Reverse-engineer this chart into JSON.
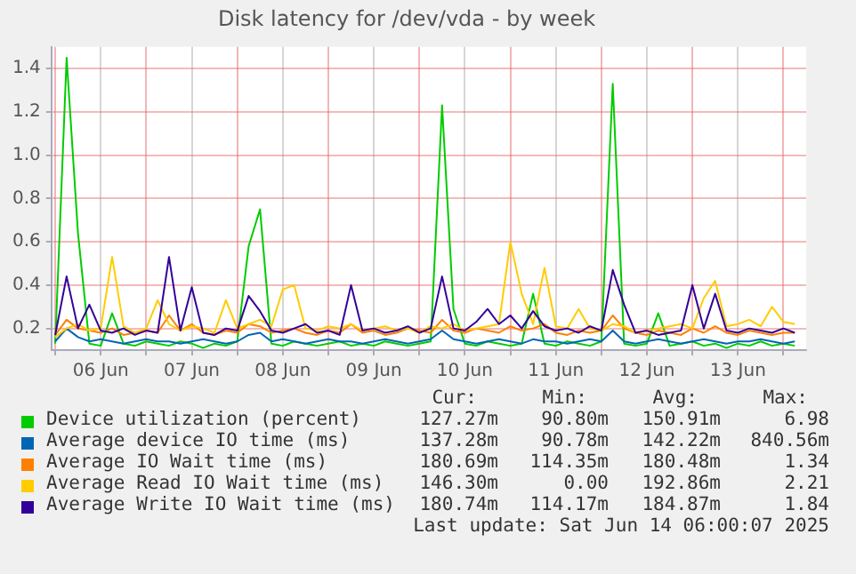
{
  "chart_data": {
    "type": "line",
    "title": "Disk latency for /dev/vda - by week",
    "x": [
      "2025-06-06T00:00",
      "2025-06-06T03:00",
      "2025-06-06T06:00",
      "2025-06-06T09:00",
      "2025-06-06T12:00",
      "2025-06-06T15:00",
      "2025-06-06T18:00",
      "2025-06-06T21:00",
      "2025-06-07T00:00",
      "2025-06-07T03:00",
      "2025-06-07T06:00",
      "2025-06-07T09:00",
      "2025-06-07T12:00",
      "2025-06-07T15:00",
      "2025-06-07T18:00",
      "2025-06-07T21:00",
      "2025-06-08T00:00",
      "2025-06-08T03:00",
      "2025-06-08T06:00",
      "2025-06-08T09:00",
      "2025-06-08T12:00",
      "2025-06-08T15:00",
      "2025-06-08T18:00",
      "2025-06-08T21:00",
      "2025-06-09T00:00",
      "2025-06-09T03:00",
      "2025-06-09T06:00",
      "2025-06-09T09:00",
      "2025-06-09T12:00",
      "2025-06-09T15:00",
      "2025-06-09T18:00",
      "2025-06-09T21:00",
      "2025-06-10T00:00",
      "2025-06-10T03:00",
      "2025-06-10T06:00",
      "2025-06-10T09:00",
      "2025-06-10T12:00",
      "2025-06-10T15:00",
      "2025-06-10T18:00",
      "2025-06-10T21:00",
      "2025-06-11T00:00",
      "2025-06-11T03:00",
      "2025-06-11T06:00",
      "2025-06-11T09:00",
      "2025-06-11T12:00",
      "2025-06-11T15:00",
      "2025-06-11T18:00",
      "2025-06-11T21:00",
      "2025-06-12T00:00",
      "2025-06-12T03:00",
      "2025-06-12T06:00",
      "2025-06-12T09:00",
      "2025-06-12T12:00",
      "2025-06-12T15:00",
      "2025-06-12T18:00",
      "2025-06-12T21:00",
      "2025-06-13T00:00",
      "2025-06-13T03:00",
      "2025-06-13T06:00",
      "2025-06-13T09:00",
      "2025-06-13T12:00",
      "2025-06-13T15:00",
      "2025-06-13T18:00",
      "2025-06-13T21:00",
      "2025-06-14T00:00",
      "2025-06-14T03:00"
    ],
    "series": [
      {
        "name": "Device utilization (percent)",
        "color": "#00cc00",
        "values": [
          0.13,
          1.45,
          0.64,
          0.13,
          0.12,
          0.27,
          0.13,
          0.12,
          0.14,
          0.13,
          0.12,
          0.14,
          0.13,
          0.11,
          0.13,
          0.12,
          0.14,
          0.58,
          0.75,
          0.13,
          0.12,
          0.14,
          0.13,
          0.12,
          0.13,
          0.14,
          0.12,
          0.13,
          0.12,
          0.14,
          0.13,
          0.12,
          0.13,
          0.14,
          1.23,
          0.29,
          0.13,
          0.12,
          0.14,
          0.13,
          0.12,
          0.13,
          0.36,
          0.13,
          0.12,
          0.14,
          0.13,
          0.12,
          0.14,
          1.33,
          0.13,
          0.12,
          0.13,
          0.27,
          0.12,
          0.13,
          0.14,
          0.12,
          0.13,
          0.11,
          0.13,
          0.12,
          0.14,
          0.12,
          0.13,
          0.12
        ]
      },
      {
        "name": "Average device IO time (ms)",
        "color": "#0066b3",
        "values": [
          0.14,
          0.2,
          0.16,
          0.14,
          0.15,
          0.14,
          0.13,
          0.14,
          0.15,
          0.14,
          0.14,
          0.13,
          0.14,
          0.15,
          0.14,
          0.13,
          0.14,
          0.17,
          0.18,
          0.14,
          0.15,
          0.14,
          0.13,
          0.14,
          0.15,
          0.14,
          0.14,
          0.13,
          0.14,
          0.15,
          0.14,
          0.13,
          0.14,
          0.15,
          0.19,
          0.15,
          0.14,
          0.13,
          0.14,
          0.15,
          0.14,
          0.13,
          0.15,
          0.14,
          0.14,
          0.13,
          0.14,
          0.15,
          0.14,
          0.19,
          0.14,
          0.13,
          0.14,
          0.15,
          0.14,
          0.13,
          0.14,
          0.15,
          0.14,
          0.13,
          0.14,
          0.14,
          0.15,
          0.14,
          0.13,
          0.14
        ]
      },
      {
        "name": "Average IO Wait time (ms)",
        "color": "#ff8000",
        "values": [
          0.17,
          0.24,
          0.2,
          0.19,
          0.18,
          0.2,
          0.17,
          0.18,
          0.19,
          0.18,
          0.26,
          0.19,
          0.22,
          0.18,
          0.17,
          0.19,
          0.18,
          0.22,
          0.21,
          0.18,
          0.19,
          0.2,
          0.18,
          0.17,
          0.19,
          0.18,
          0.22,
          0.18,
          0.19,
          0.17,
          0.18,
          0.2,
          0.19,
          0.18,
          0.24,
          0.19,
          0.18,
          0.2,
          0.19,
          0.18,
          0.21,
          0.19,
          0.2,
          0.22,
          0.18,
          0.17,
          0.19,
          0.18,
          0.19,
          0.26,
          0.2,
          0.18,
          0.17,
          0.19,
          0.18,
          0.17,
          0.2,
          0.18,
          0.21,
          0.18,
          0.17,
          0.19,
          0.18,
          0.17,
          0.18,
          0.18
        ]
      },
      {
        "name": "Average Read IO Wait time (ms)",
        "color": "#ffcc00",
        "values": [
          0.16,
          0.2,
          0.22,
          0.19,
          0.2,
          0.53,
          0.21,
          0.18,
          0.2,
          0.33,
          0.22,
          0.19,
          0.21,
          0.2,
          0.18,
          0.33,
          0.2,
          0.22,
          0.24,
          0.21,
          0.38,
          0.4,
          0.2,
          0.19,
          0.21,
          0.2,
          0.22,
          0.19,
          0.2,
          0.21,
          0.19,
          0.2,
          0.18,
          0.21,
          0.2,
          0.22,
          0.19,
          0.2,
          0.21,
          0.22,
          0.6,
          0.36,
          0.22,
          0.48,
          0.21,
          0.2,
          0.29,
          0.2,
          0.19,
          0.22,
          0.21,
          0.18,
          0.19,
          0.2,
          0.21,
          0.22,
          0.2,
          0.34,
          0.42,
          0.21,
          0.22,
          0.24,
          0.21,
          0.3,
          0.23,
          0.22
        ]
      },
      {
        "name": "Average Write IO Wait time (ms)",
        "color": "#330099",
        "values": [
          0.17,
          0.44,
          0.2,
          0.31,
          0.19,
          0.18,
          0.2,
          0.17,
          0.19,
          0.18,
          0.53,
          0.19,
          0.39,
          0.18,
          0.17,
          0.2,
          0.19,
          0.35,
          0.28,
          0.19,
          0.18,
          0.2,
          0.22,
          0.18,
          0.19,
          0.17,
          0.4,
          0.19,
          0.2,
          0.18,
          0.19,
          0.21,
          0.18,
          0.2,
          0.44,
          0.2,
          0.19,
          0.23,
          0.29,
          0.22,
          0.26,
          0.2,
          0.28,
          0.21,
          0.19,
          0.2,
          0.18,
          0.21,
          0.19,
          0.47,
          0.31,
          0.18,
          0.19,
          0.17,
          0.18,
          0.19,
          0.4,
          0.2,
          0.36,
          0.19,
          0.18,
          0.2,
          0.19,
          0.18,
          0.2,
          0.18
        ]
      }
    ],
    "xlim": [
      "2025-06-05T23:00",
      "2025-06-14T06:00"
    ],
    "xticks": [
      {
        "value": "2025-06-06T00:00",
        "label": null
      },
      {
        "value": "2025-06-06T12:00",
        "label": "06 Jun"
      },
      {
        "value": "2025-06-07T00:00",
        "label": null
      },
      {
        "value": "2025-06-07T12:00",
        "label": "07 Jun"
      },
      {
        "value": "2025-06-08T00:00",
        "label": null
      },
      {
        "value": "2025-06-08T12:00",
        "label": "08 Jun"
      },
      {
        "value": "2025-06-09T00:00",
        "label": null
      },
      {
        "value": "2025-06-09T12:00",
        "label": "09 Jun"
      },
      {
        "value": "2025-06-10T00:00",
        "label": null
      },
      {
        "value": "2025-06-10T12:00",
        "label": "10 Jun"
      },
      {
        "value": "2025-06-11T00:00",
        "label": null
      },
      {
        "value": "2025-06-11T12:00",
        "label": "11 Jun"
      },
      {
        "value": "2025-06-12T00:00",
        "label": null
      },
      {
        "value": "2025-06-12T12:00",
        "label": "12 Jun"
      },
      {
        "value": "2025-06-13T00:00",
        "label": null
      },
      {
        "value": "2025-06-13T12:00",
        "label": "13 Jun"
      },
      {
        "value": "2025-06-14T00:00",
        "label": null
      }
    ],
    "ylim": [
      0.1,
      1.5
    ],
    "yticks": [
      0.2,
      0.4,
      0.6,
      0.8,
      {
        "value": 1,
        "label": "1.0"
      },
      1.2,
      1.4
    ],
    "grid": true,
    "legend": "bottom",
    "annotations": [
      "Cur:",
      "Min:",
      "Avg:",
      "Max:",
      "127.27m",
      "90.80m",
      "150.91m",
      "6.98",
      "137.28m",
      "90.78m",
      "142.22m",
      "840.56m",
      "180.69m",
      "114.35m",
      "180.48m",
      "1.34",
      "146.30m",
      "0.00",
      "192.86m",
      "2.21",
      "180.74m",
      "114.17m",
      "184.87m",
      "1.84",
      "Last update: Sat Jun 14 06:00:07 2025"
    ]
  }
}
